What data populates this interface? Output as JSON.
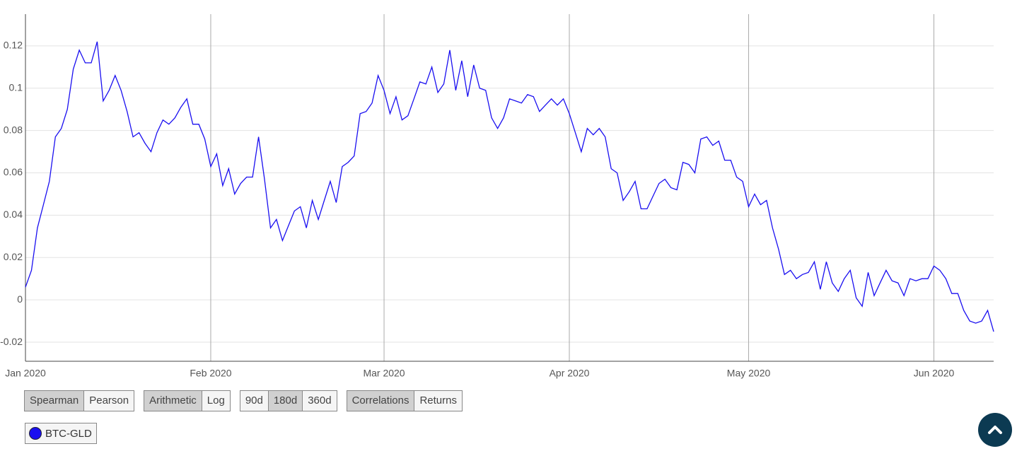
{
  "chart_data": {
    "type": "line",
    "categories": [
      "Jan 2020",
      null,
      null,
      null,
      null,
      null,
      null,
      null,
      null,
      null,
      null,
      null,
      null,
      null,
      null,
      null,
      null,
      null,
      null,
      null,
      null,
      null,
      null,
      null,
      null,
      null,
      null,
      null,
      null,
      null,
      null,
      "Feb 2020",
      null,
      null,
      null,
      null,
      null,
      null,
      null,
      null,
      null,
      null,
      null,
      null,
      null,
      null,
      null,
      null,
      null,
      null,
      null,
      null,
      null,
      null,
      null,
      null,
      null,
      null,
      null,
      null,
      "Mar 2020",
      null,
      null,
      null,
      null,
      null,
      null,
      null,
      null,
      null,
      null,
      null,
      null,
      null,
      null,
      null,
      null,
      null,
      null,
      null,
      null,
      null,
      null,
      null,
      null,
      null,
      null,
      null,
      null,
      null,
      null,
      "Apr 2020",
      null,
      null,
      null,
      null,
      null,
      null,
      null,
      null,
      null,
      null,
      null,
      null,
      null,
      null,
      null,
      null,
      null,
      null,
      null,
      null,
      null,
      null,
      null,
      null,
      null,
      null,
      null,
      null,
      null,
      "May 2020",
      null,
      null,
      null,
      null,
      null,
      null,
      null,
      null,
      null,
      null,
      null,
      null,
      null,
      null,
      null,
      null,
      null,
      null,
      null,
      null,
      null,
      null,
      null,
      null,
      null,
      null,
      null,
      null,
      null,
      null,
      "Jun 2020",
      null,
      null,
      null,
      null,
      null,
      null,
      null,
      null,
      null,
      null
    ],
    "series": [
      {
        "name": "BTC-GLD",
        "color": "#1a0ff0",
        "values": [
          0.006,
          0.014,
          0.034,
          0.045,
          0.056,
          0.077,
          0.081,
          0.09,
          0.109,
          0.118,
          0.112,
          0.112,
          0.122,
          0.094,
          0.099,
          0.106,
          0.099,
          0.089,
          0.077,
          0.079,
          0.074,
          0.07,
          0.079,
          0.085,
          0.083,
          0.086,
          0.091,
          0.095,
          0.083,
          0.083,
          0.076,
          0.063,
          0.069,
          0.054,
          0.062,
          0.05,
          0.055,
          0.058,
          0.058,
          0.077,
          0.057,
          0.034,
          0.038,
          0.028,
          0.035,
          0.042,
          0.044,
          0.034,
          0.047,
          0.038,
          0.047,
          0.056,
          0.046,
          0.063,
          0.065,
          0.068,
          0.088,
          0.089,
          0.093,
          0.106,
          0.099,
          0.088,
          0.096,
          0.085,
          0.087,
          0.095,
          0.103,
          0.102,
          0.11,
          0.098,
          0.102,
          0.118,
          0.099,
          0.113,
          0.096,
          0.111,
          0.1,
          0.099,
          0.086,
          0.081,
          0.086,
          0.095,
          0.094,
          0.093,
          0.097,
          0.096,
          0.089,
          0.092,
          0.095,
          0.092,
          0.095,
          0.088,
          0.079,
          0.07,
          0.081,
          0.078,
          0.081,
          0.077,
          0.062,
          0.06,
          0.047,
          0.051,
          0.056,
          0.043,
          0.043,
          0.049,
          0.055,
          0.057,
          0.053,
          0.052,
          0.065,
          0.064,
          0.06,
          0.076,
          0.077,
          0.073,
          0.075,
          0.066,
          0.066,
          0.058,
          0.056,
          0.044,
          0.05,
          0.045,
          0.047,
          0.034,
          0.024,
          0.012,
          0.014,
          0.01,
          0.012,
          0.013,
          0.018,
          0.005,
          0.018,
          0.008,
          0.004,
          0.01,
          0.014,
          0.001,
          -0.003,
          0.013,
          0.002,
          0.008,
          0.014,
          0.009,
          0.008,
          0.002,
          0.01,
          0.009,
          0.01,
          0.01,
          0.016,
          0.014,
          0.01,
          0.003,
          0.003,
          -0.005,
          -0.01,
          -0.011,
          -0.01,
          -0.005,
          -0.015
        ]
      }
    ],
    "ylim": [
      -0.029,
      0.135
    ],
    "yticks": [
      -0.02,
      0,
      0.02,
      0.04,
      0.06,
      0.08,
      0.1,
      0.12
    ],
    "grid": true
  },
  "button_groups": [
    {
      "buttons": [
        "Spearman",
        "Pearson"
      ],
      "selected": 0
    },
    {
      "buttons": [
        "Arithmetic",
        "Log"
      ],
      "selected": 0
    },
    {
      "buttons": [
        "90d",
        "180d",
        "360d"
      ],
      "selected": 1
    },
    {
      "buttons": [
        "Correlations",
        "Returns"
      ],
      "selected": 0
    }
  ]
}
